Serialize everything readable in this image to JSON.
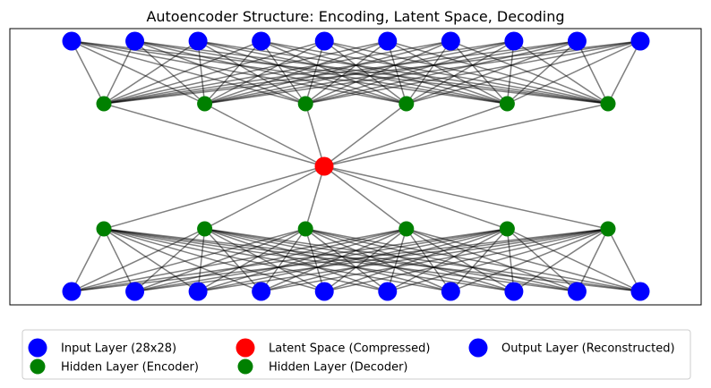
{
  "title": "Autoencoder Structure: Encoding, Latent Space, Decoding",
  "colors": {
    "input": "#0000ff",
    "hidden_encoder": "#008000",
    "latent": "#ff0000",
    "hidden_decoder": "#008000",
    "output": "#0000ff",
    "edge": "#000000"
  },
  "layers": [
    {
      "id": "input",
      "node_count": 10,
      "label": "Input Layer (28x28)",
      "color_key": "input",
      "marker": "large"
    },
    {
      "id": "hidden_encoder",
      "node_count": 6,
      "label": "Hidden Layer (Encoder)",
      "color_key": "hidden_encoder",
      "marker": "small"
    },
    {
      "id": "latent",
      "node_count": 1,
      "label": "Latent Space (Compressed)",
      "color_key": "latent",
      "marker": "large"
    },
    {
      "id": "hidden_decoder",
      "node_count": 6,
      "label": "Hidden Layer (Decoder)",
      "color_key": "hidden_decoder",
      "marker": "small"
    },
    {
      "id": "output",
      "node_count": 10,
      "label": "Output Layer (Reconstructed)",
      "color_key": "output",
      "marker": "large"
    }
  ],
  "connections": "fully-connected",
  "legend": {
    "placement": "bottom",
    "columns": 3,
    "entries": [
      {
        "label": "Input Layer (28x28)",
        "color_key": "input",
        "marker": "large"
      },
      {
        "label": "Hidden Layer (Encoder)",
        "color_key": "hidden_encoder",
        "marker": "small"
      },
      {
        "label": "Latent Space (Compressed)",
        "color_key": "latent",
        "marker": "large"
      },
      {
        "label": "Hidden Layer (Decoder)",
        "color_key": "hidden_decoder",
        "marker": "small"
      },
      {
        "label": "Output Layer (Reconstructed)",
        "color_key": "output",
        "marker": "large"
      }
    ]
  }
}
